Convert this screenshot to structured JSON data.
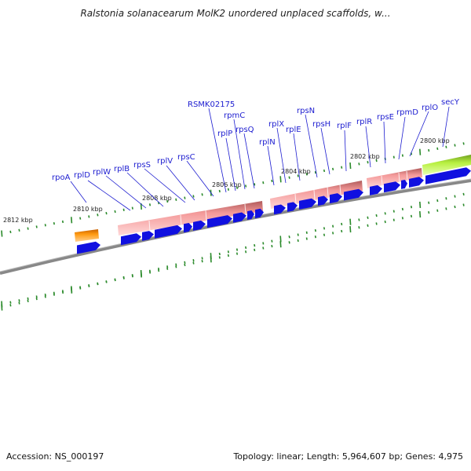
{
  "title": "Ralstonia solanacearum MolK2 unordered unplaced scaffolds, w...",
  "kbp_labels": [
    "2812 kbp",
    "2810 kbp",
    "2808 kbp",
    "2806 kbp",
    "2804 kbp",
    "2802 kbp",
    "2800 kbp"
  ],
  "genes": [
    "rpoA",
    "rplD",
    "rplW",
    "rplB",
    "rpsS",
    "rplV",
    "rpsC",
    "RSMK02175",
    "rplP",
    "rpmC",
    "rpsQ",
    "rplN",
    "rplX",
    "rplE",
    "rpsN",
    "rpsH",
    "rplF",
    "rplR",
    "rpsE",
    "rpmD",
    "rplO",
    "secY"
  ],
  "colors": {
    "gene_label": "#1c1cd0",
    "cds_arrow": "#1010e0",
    "operon_pink": "#f08a8a",
    "operon_dark": "#a85050",
    "operon_orange": "#ff8c00",
    "operon_green": "#a0e040",
    "scale_tick": "#2a8a2a",
    "sequence_line": "#777777"
  },
  "footer": {
    "accession": "Accession: NS_000197",
    "summary": "Topology: linear; Length: 5,964,607 bp; Genes: 4,975"
  }
}
